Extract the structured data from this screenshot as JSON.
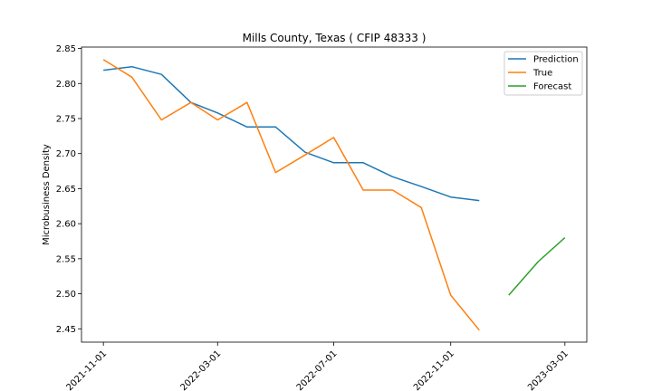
{
  "chart_data": {
    "type": "line",
    "title": "Mills County, Texas ( CFIP 48333 )",
    "xlabel": "",
    "ylabel": "Microbusiness Density",
    "x_ticks": [
      "2021-11-01",
      "2022-03-01",
      "2022-07-01",
      "2022-11-01",
      "2023-03-01"
    ],
    "y_ticks": [
      "2.45",
      "2.50",
      "2.55",
      "2.60",
      "2.65",
      "2.70",
      "2.75",
      "2.80",
      "2.85"
    ],
    "xlim": [
      "2021-10-09",
      "2023-03-24"
    ],
    "ylim": [
      2.431,
      2.852
    ],
    "grid": false,
    "legend_position": "top-right",
    "series": [
      {
        "name": "Prediction",
        "color": "#1f77b4",
        "x": [
          "2021-11-01",
          "2021-12-01",
          "2022-01-01",
          "2022-02-01",
          "2022-03-01",
          "2022-04-01",
          "2022-05-01",
          "2022-06-01",
          "2022-07-01",
          "2022-08-01",
          "2022-09-01",
          "2022-10-01",
          "2022-11-01",
          "2022-12-01"
        ],
        "y": [
          2.819,
          2.824,
          2.813,
          2.773,
          2.758,
          2.738,
          2.738,
          2.702,
          2.687,
          2.687,
          2.667,
          2.653,
          2.638,
          2.633
        ]
      },
      {
        "name": "True",
        "color": "#ff7f0e",
        "x": [
          "2021-11-01",
          "2021-12-01",
          "2022-01-01",
          "2022-02-01",
          "2022-03-01",
          "2022-04-01",
          "2022-05-01",
          "2022-06-01",
          "2022-07-01",
          "2022-08-01",
          "2022-09-01",
          "2022-10-01",
          "2022-11-01",
          "2022-12-01"
        ],
        "y": [
          2.834,
          2.809,
          2.748,
          2.773,
          2.748,
          2.773,
          2.673,
          2.698,
          2.723,
          2.648,
          2.648,
          2.623,
          2.498,
          2.448
        ]
      },
      {
        "name": "Forecast",
        "color": "#2ca02c",
        "x": [
          "2023-01-01",
          "2023-02-01",
          "2023-03-01"
        ],
        "y": [
          2.498,
          2.546,
          2.58
        ]
      }
    ]
  }
}
